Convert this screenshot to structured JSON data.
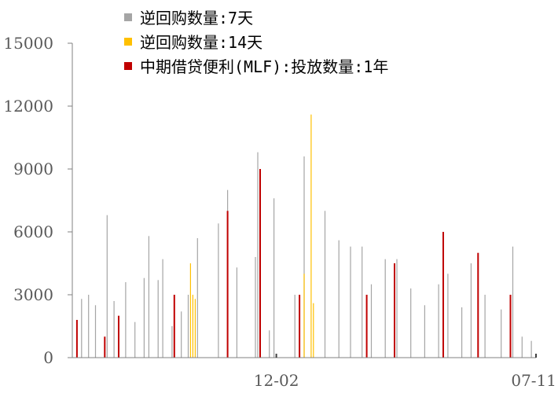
{
  "colors": {
    "s7": "#A5A5A5",
    "s14": "#FFC000",
    "mlf": "#C00000",
    "axis": "#808080",
    "bg": "#FFFFFF"
  },
  "chart_data": {
    "type": "bar",
    "ylim": [
      0,
      15000
    ],
    "yticks": [
      0,
      3000,
      6000,
      9000,
      12000,
      15000
    ],
    "ytick_labels": [
      "0",
      "3000",
      "6000",
      "9000",
      "12000",
      "15000"
    ],
    "xtick_labels": [
      "12-02",
      "07-11"
    ],
    "xtick_positions": [
      0.44,
      1.0
    ],
    "legend_position": "top-left",
    "series": [
      {
        "name": "逆回购数量:7天",
        "color": "#A5A5A5",
        "points": [
          [
            0.02,
            2800
          ],
          [
            0.035,
            3000
          ],
          [
            0.05,
            2500
          ],
          [
            0.075,
            6800
          ],
          [
            0.09,
            2700
          ],
          [
            0.115,
            3600
          ],
          [
            0.135,
            1700
          ],
          [
            0.155,
            3800
          ],
          [
            0.165,
            5800
          ],
          [
            0.185,
            3700
          ],
          [
            0.195,
            4700
          ],
          [
            0.215,
            1500
          ],
          [
            0.235,
            2200
          ],
          [
            0.25,
            3000
          ],
          [
            0.27,
            5700
          ],
          [
            0.315,
            6400
          ],
          [
            0.335,
            8000
          ],
          [
            0.355,
            4300
          ],
          [
            0.395,
            4800
          ],
          [
            0.4,
            9800
          ],
          [
            0.425,
            1300
          ],
          [
            0.435,
            7600
          ],
          [
            0.48,
            3000
          ],
          [
            0.5,
            9600
          ],
          [
            0.545,
            7000
          ],
          [
            0.575,
            5600
          ],
          [
            0.6,
            5300
          ],
          [
            0.625,
            5300
          ],
          [
            0.645,
            3500
          ],
          [
            0.675,
            4700
          ],
          [
            0.7,
            4700
          ],
          [
            0.73,
            3300
          ],
          [
            0.76,
            2500
          ],
          [
            0.79,
            3500
          ],
          [
            0.81,
            4000
          ],
          [
            0.84,
            2400
          ],
          [
            0.86,
            4500
          ],
          [
            0.89,
            3000
          ],
          [
            0.925,
            2300
          ],
          [
            0.95,
            5300
          ],
          [
            0.97,
            1000
          ],
          [
            0.99,
            800
          ]
        ]
      },
      {
        "name": "逆回购数量:14天",
        "color": "#FFC000",
        "points": [
          [
            0.255,
            4500
          ],
          [
            0.26,
            3000
          ],
          [
            0.265,
            2800
          ],
          [
            0.5,
            4000
          ],
          [
            0.515,
            11600
          ],
          [
            0.52,
            2600
          ]
        ]
      },
      {
        "name": "中期借贷便利(MLF):投放数量:1年",
        "color": "#C00000",
        "points": [
          [
            0.01,
            1800
          ],
          [
            0.07,
            1000
          ],
          [
            0.1,
            2000
          ],
          [
            0.22,
            3000
          ],
          [
            0.335,
            7000
          ],
          [
            0.405,
            9000
          ],
          [
            0.49,
            3000
          ],
          [
            0.635,
            3000
          ],
          [
            0.695,
            4500
          ],
          [
            0.8,
            6000
          ],
          [
            0.875,
            5000
          ],
          [
            0.945,
            3000
          ]
        ]
      }
    ]
  }
}
